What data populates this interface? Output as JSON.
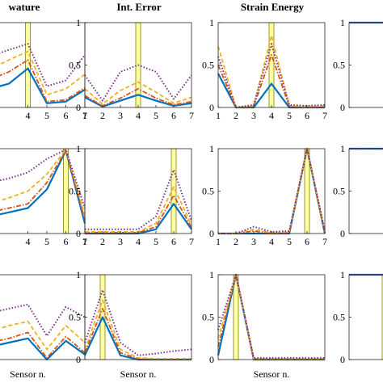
{
  "figure": {
    "column_titles": [
      "wature",
      "Int. Error",
      "Strain Energy",
      ""
    ],
    "xlabel": "Sensor n."
  },
  "colors": {
    "series_solid": "#0072BD",
    "series_dashdot": "#D95319",
    "series_dashed": "#EDB120",
    "series_dotted": "#7E2F8E",
    "highlight_fill": "#FFFFA0",
    "highlight_edge": "#6B6B00"
  },
  "chart_data": [
    {
      "type": "line",
      "title": "wature",
      "xlabel": "",
      "ylabel": "",
      "x": [
        1,
        2,
        3,
        4,
        5,
        6,
        7
      ],
      "xlim": [
        1,
        7
      ],
      "ylim": [
        0,
        1
      ],
      "xticks": [
        "4",
        "5",
        "6",
        "7"
      ],
      "yticks": [],
      "highlight_x": 4,
      "grid": false,
      "legend": "none",
      "series": [
        {
          "style": "solid",
          "values": [
            0.18,
            0.22,
            0.28,
            0.46,
            0.05,
            0.07,
            0.21
          ]
        },
        {
          "style": "dashdot",
          "values": [
            0.28,
            0.33,
            0.42,
            0.56,
            0.07,
            0.09,
            0.23
          ]
        },
        {
          "style": "dashed",
          "values": [
            0.38,
            0.45,
            0.56,
            0.66,
            0.15,
            0.22,
            0.39
          ]
        },
        {
          "style": "dotted",
          "values": [
            0.52,
            0.6,
            0.68,
            0.75,
            0.25,
            0.32,
            0.62
          ]
        }
      ]
    },
    {
      "type": "line",
      "title": "Int. Error",
      "xlabel": "",
      "ylabel": "",
      "x": [
        1,
        2,
        3,
        4,
        5,
        6,
        7
      ],
      "xlim": [
        1,
        7
      ],
      "ylim": [
        0,
        1
      ],
      "xticks": [
        "1",
        "2",
        "3",
        "4",
        "5",
        "6",
        "7"
      ],
      "yticks": [
        "0",
        "0.5",
        "1"
      ],
      "highlight_x": 4,
      "grid": false,
      "legend": "none",
      "series": [
        {
          "style": "solid",
          "values": [
            0.12,
            0.01,
            0.08,
            0.15,
            0.08,
            0.02,
            0.05
          ]
        },
        {
          "style": "dashdot",
          "values": [
            0.14,
            0.02,
            0.11,
            0.22,
            0.11,
            0.03,
            0.07
          ]
        },
        {
          "style": "dashed",
          "values": [
            0.22,
            0.04,
            0.2,
            0.3,
            0.18,
            0.05,
            0.12
          ]
        },
        {
          "style": "dotted",
          "values": [
            0.38,
            0.08,
            0.42,
            0.5,
            0.42,
            0.1,
            0.38
          ]
        }
      ]
    },
    {
      "type": "line",
      "title": "Strain Energy",
      "xlabel": "",
      "ylabel": "",
      "x": [
        1,
        2,
        3,
        4,
        5,
        6,
        7
      ],
      "xlim": [
        1,
        7
      ],
      "ylim": [
        0,
        1
      ],
      "xticks": [
        "1",
        "2",
        "3",
        "4",
        "5",
        "6",
        "7"
      ],
      "yticks": [
        "0",
        "0.5",
        "1"
      ],
      "highlight_x": 4,
      "grid": false,
      "legend": "none",
      "series": [
        {
          "style": "solid",
          "values": [
            0.4,
            0.0,
            0.0,
            0.28,
            0.0,
            0.0,
            0.0
          ]
        },
        {
          "style": "dashdot",
          "values": [
            0.5,
            0.0,
            0.01,
            0.62,
            0.01,
            0.0,
            0.01
          ]
        },
        {
          "style": "dashed",
          "values": [
            0.72,
            0.0,
            0.02,
            0.85,
            0.02,
            0.01,
            0.02
          ]
        },
        {
          "style": "dotted",
          "values": [
            0.6,
            0.0,
            0.03,
            0.75,
            0.03,
            0.02,
            0.03
          ]
        }
      ]
    },
    {
      "type": "line",
      "title": "",
      "xlabel": "",
      "ylabel": "",
      "x": [
        1,
        2,
        3,
        4,
        5,
        6,
        7
      ],
      "xlim": [
        1,
        7
      ],
      "ylim": [
        0,
        1
      ],
      "xticks": [],
      "yticks": [
        "0",
        "0.5",
        "1"
      ],
      "highlight_x": null,
      "grid": false,
      "legend": "none",
      "series": [
        {
          "style": "solid",
          "values": [
            1,
            1,
            1,
            1,
            1,
            1,
            1
          ]
        },
        {
          "style": "dotted",
          "values": [
            1,
            1,
            1,
            1,
            1,
            1,
            1
          ]
        }
      ]
    },
    {
      "type": "line",
      "title": "",
      "xlabel": "",
      "ylabel": "",
      "x": [
        1,
        2,
        3,
        4,
        5,
        6,
        7
      ],
      "xlim": [
        1,
        7
      ],
      "ylim": [
        0,
        1
      ],
      "xticks": [
        "4",
        "5",
        "6",
        "7"
      ],
      "yticks": [],
      "highlight_x": 6,
      "grid": false,
      "legend": "none",
      "series": [
        {
          "style": "solid",
          "values": [
            0.15,
            0.2,
            0.25,
            0.3,
            0.52,
            0.98,
            0.12
          ]
        },
        {
          "style": "dashdot",
          "values": [
            0.2,
            0.25,
            0.3,
            0.35,
            0.6,
            0.98,
            0.16
          ]
        },
        {
          "style": "dashed",
          "values": [
            0.3,
            0.35,
            0.42,
            0.5,
            0.7,
            0.99,
            0.22
          ]
        },
        {
          "style": "dotted",
          "values": [
            0.55,
            0.6,
            0.65,
            0.72,
            0.88,
            0.99,
            0.3
          ]
        }
      ]
    },
    {
      "type": "line",
      "title": "",
      "xlabel": "",
      "ylabel": "",
      "x": [
        1,
        2,
        3,
        4,
        5,
        6,
        7
      ],
      "xlim": [
        1,
        7
      ],
      "ylim": [
        0,
        1
      ],
      "xticks": [
        "1",
        "2",
        "3",
        "4",
        "5",
        "6",
        "7"
      ],
      "yticks": [
        "0",
        "0.5",
        "1"
      ],
      "highlight_x": 6,
      "grid": false,
      "legend": "none",
      "series": [
        {
          "style": "solid",
          "values": [
            0.0,
            0.0,
            0.0,
            0.0,
            0.05,
            0.35,
            0.05
          ]
        },
        {
          "style": "dashdot",
          "values": [
            0.01,
            0.01,
            0.01,
            0.01,
            0.08,
            0.45,
            0.07
          ]
        },
        {
          "style": "dashed",
          "values": [
            0.02,
            0.02,
            0.02,
            0.02,
            0.12,
            0.55,
            0.1
          ]
        },
        {
          "style": "dotted",
          "values": [
            0.05,
            0.05,
            0.05,
            0.05,
            0.2,
            0.75,
            0.15
          ]
        }
      ]
    },
    {
      "type": "line",
      "title": "",
      "xlabel": "",
      "ylabel": "",
      "x": [
        1,
        2,
        3,
        4,
        5,
        6,
        7
      ],
      "xlim": [
        1,
        7
      ],
      "ylim": [
        0,
        1
      ],
      "xticks": [
        "1",
        "2",
        "3",
        "4",
        "5",
        "6",
        "7"
      ],
      "yticks": [
        "0",
        "0.5",
        "1"
      ],
      "highlight_x": 6,
      "grid": false,
      "legend": "none",
      "series": [
        {
          "style": "solid",
          "values": [
            0.0,
            0.0,
            0.0,
            0.0,
            0.0,
            1.0,
            0.0
          ]
        },
        {
          "style": "dashdot",
          "values": [
            0.0,
            0.0,
            0.03,
            0.0,
            0.01,
            1.0,
            0.01
          ]
        },
        {
          "style": "dashed",
          "values": [
            0.0,
            0.0,
            0.05,
            0.01,
            0.02,
            1.0,
            0.02
          ]
        },
        {
          "style": "dotted",
          "values": [
            0.0,
            0.0,
            0.08,
            0.02,
            0.03,
            1.0,
            0.03
          ]
        }
      ]
    },
    {
      "type": "line",
      "title": "",
      "xlabel": "",
      "ylabel": "",
      "x": [
        1,
        2,
        3,
        4,
        5,
        6,
        7
      ],
      "xlim": [
        1,
        7
      ],
      "ylim": [
        0,
        1
      ],
      "xticks": [],
      "yticks": [
        "0",
        "0.5",
        "1"
      ],
      "highlight_x": null,
      "grid": false,
      "legend": "none",
      "series": [
        {
          "style": "solid",
          "values": [
            1,
            1,
            1,
            1,
            1,
            1,
            1
          ]
        },
        {
          "style": "dotted",
          "values": [
            1,
            1,
            1,
            1,
            1,
            1,
            1
          ]
        }
      ]
    },
    {
      "type": "line",
      "title": "",
      "xlabel": "Sensor n.",
      "ylabel": "",
      "x": [
        1,
        2,
        3,
        4,
        5,
        6,
        7
      ],
      "xlim": [
        1,
        7
      ],
      "ylim": [
        0,
        1
      ],
      "xticks": [],
      "yticks": [],
      "highlight_x": null,
      "grid": false,
      "legend": "none",
      "series": [
        {
          "style": "solid",
          "values": [
            0.1,
            0.15,
            0.2,
            0.25,
            0.0,
            0.22,
            0.06
          ]
        },
        {
          "style": "dashdot",
          "values": [
            0.15,
            0.2,
            0.25,
            0.32,
            0.02,
            0.27,
            0.08
          ]
        },
        {
          "style": "dashed",
          "values": [
            0.28,
            0.33,
            0.4,
            0.45,
            0.12,
            0.4,
            0.2
          ]
        },
        {
          "style": "dotted",
          "values": [
            0.5,
            0.55,
            0.6,
            0.65,
            0.28,
            0.62,
            0.5
          ]
        }
      ]
    },
    {
      "type": "line",
      "title": "",
      "xlabel": "Sensor n.",
      "ylabel": "",
      "x": [
        1,
        2,
        3,
        4,
        5,
        6,
        7
      ],
      "xlim": [
        1,
        7
      ],
      "ylim": [
        0,
        1
      ],
      "xticks": [],
      "yticks": [
        "0",
        "0.5",
        "1"
      ],
      "highlight_x": 2,
      "grid": false,
      "legend": "none",
      "series": [
        {
          "style": "solid",
          "values": [
            0.05,
            0.5,
            0.05,
            0.0,
            0.0,
            0.0,
            0.0
          ]
        },
        {
          "style": "dashdot",
          "values": [
            0.08,
            0.6,
            0.08,
            0.01,
            0.0,
            0.0,
            0.0
          ]
        },
        {
          "style": "dashed",
          "values": [
            0.12,
            0.7,
            0.12,
            0.02,
            0.01,
            0.01,
            0.01
          ]
        },
        {
          "style": "dotted",
          "values": [
            0.2,
            0.82,
            0.2,
            0.05,
            0.07,
            0.1,
            0.12
          ]
        }
      ]
    },
    {
      "type": "line",
      "title": "",
      "xlabel": "Sensor n.",
      "ylabel": "",
      "x": [
        1,
        2,
        3,
        4,
        5,
        6,
        7
      ],
      "xlim": [
        1,
        7
      ],
      "ylim": [
        0,
        1
      ],
      "xticks": [],
      "yticks": [
        "0",
        "0.5",
        "1"
      ],
      "highlight_x": 2,
      "grid": false,
      "legend": "none",
      "series": [
        {
          "style": "solid",
          "values": [
            0.05,
            1.0,
            0.0,
            0.0,
            0.0,
            0.0,
            0.0
          ]
        },
        {
          "style": "dashdot",
          "values": [
            0.15,
            1.0,
            0.01,
            0.0,
            0.0,
            0.0,
            0.0
          ]
        },
        {
          "style": "dashed",
          "values": [
            0.25,
            1.0,
            0.01,
            0.01,
            0.01,
            0.01,
            0.01
          ]
        },
        {
          "style": "dotted",
          "values": [
            0.35,
            1.0,
            0.02,
            0.02,
            0.02,
            0.02,
            0.02
          ]
        }
      ]
    },
    {
      "type": "line",
      "title": "",
      "xlabel": "",
      "ylabel": "",
      "x": [
        1,
        2,
        3,
        4,
        5,
        6,
        7
      ],
      "xlim": [
        1,
        7
      ],
      "ylim": [
        0,
        1
      ],
      "xticks": [],
      "yticks": [
        "0",
        "0.5",
        "1"
      ],
      "highlight_x": 3,
      "grid": false,
      "legend": "none",
      "series": [
        {
          "style": "solid",
          "values": [
            1,
            1,
            1,
            1,
            1,
            1,
            1
          ]
        },
        {
          "style": "dotted",
          "values": [
            1,
            1,
            1,
            1,
            1,
            1,
            1
          ]
        }
      ]
    }
  ]
}
